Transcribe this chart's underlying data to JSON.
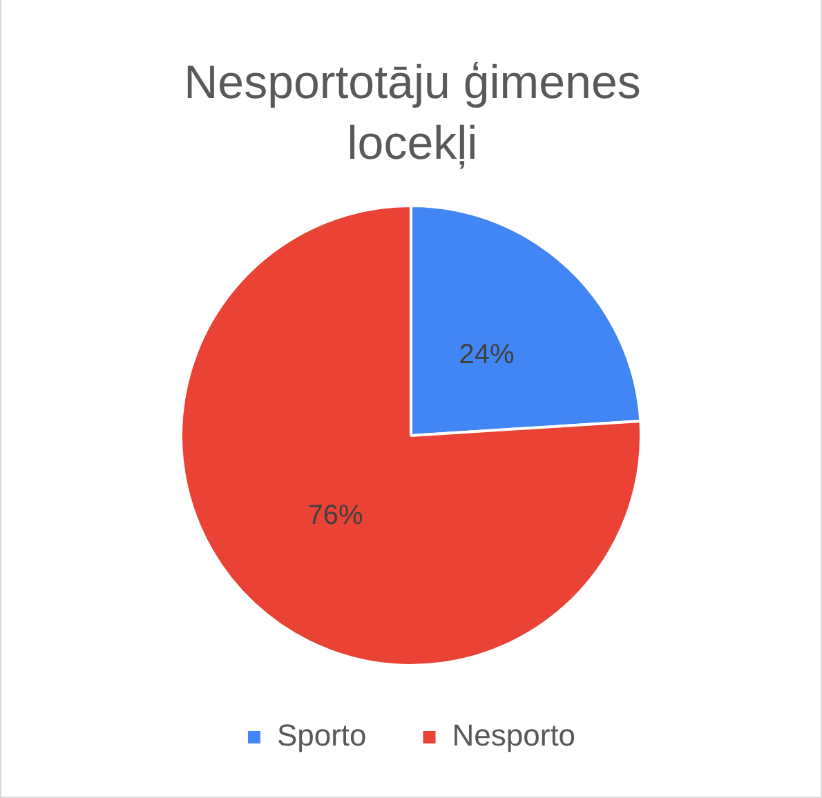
{
  "chart_data": {
    "type": "pie",
    "title": "Nesportotāju ģimenes locekļi",
    "categories": [
      "Sporto",
      "Nesporto"
    ],
    "values": [
      24,
      76
    ],
    "colors": [
      "#4285f4",
      "#ea4335"
    ],
    "value_labels": [
      "24%",
      "76%"
    ],
    "legend": "bottom"
  }
}
